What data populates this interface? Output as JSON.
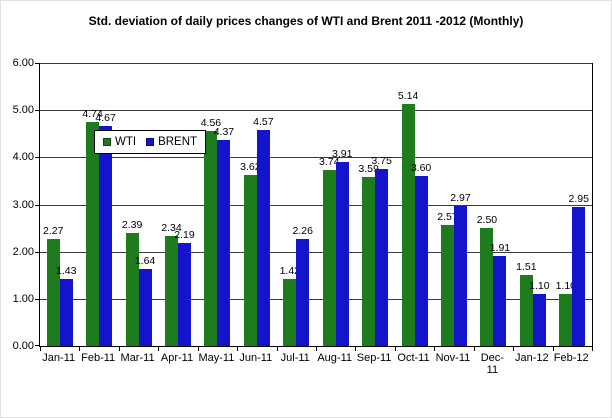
{
  "title": "Std. deviation of daily prices changes of WTI and Brent 2011 -2012 (Monthly)",
  "legend": {
    "items": [
      {
        "label": "WTI",
        "color": "#1e7b1e"
      },
      {
        "label": "BRENT",
        "color": "#1414cc"
      }
    ]
  },
  "chart_data": {
    "type": "bar",
    "title": "Std. deviation of daily prices changes of WTI and Brent 2011 -2012 (Monthly)",
    "categories": [
      "Jan-11",
      "Feb-11",
      "Mar-11",
      "Apr-11",
      "May-11",
      "Jun-11",
      "Jul-11",
      "Aug-11",
      "Sep-11",
      "Oct-11",
      "Nov-11",
      "Dec-11",
      "Jan-12",
      "Feb-12"
    ],
    "series": [
      {
        "name": "WTI",
        "color": "#1e7b1e",
        "values": [
          2.27,
          4.74,
          2.39,
          2.34,
          4.56,
          3.62,
          1.42,
          3.74,
          3.59,
          5.14,
          2.57,
          2.5,
          1.51,
          1.1
        ]
      },
      {
        "name": "BRENT",
        "color": "#1414cc",
        "values": [
          1.43,
          4.67,
          1.64,
          2.19,
          4.37,
          4.57,
          2.26,
          3.91,
          3.75,
          3.6,
          2.97,
          1.91,
          1.1,
          2.95
        ]
      }
    ],
    "xlabel": "",
    "ylabel": "",
    "ylim": [
      0,
      6
    ],
    "y_tick_labels": [
      "0.00",
      "1.00",
      "2.00",
      "3.00",
      "4.00",
      "5.00",
      "6.00"
    ],
    "x_tick_labels": [
      "Jan-11",
      "Feb-11",
      "Mar-11",
      "Apr-11",
      "May-11",
      "Jun-11",
      "Jul-11",
      "Aug-11",
      "Sep-11",
      "Oct-11",
      "Nov-11",
      "Dec-\n11",
      "Jan-12",
      "Feb-12"
    ],
    "grid": true,
    "legend_position": "top-left",
    "data_labels": true
  }
}
